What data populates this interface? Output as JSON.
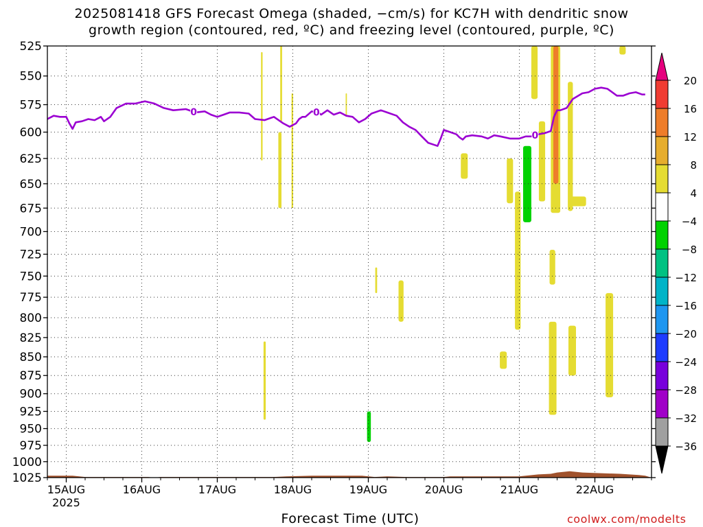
{
  "title": {
    "line1": "2025081418 GFS Forecast Omega (shaded, −cm/s) for KC7H with dendritic snow",
    "line2": "growth region (contoured, red, ºC) and freezing level (contoured, purple, ºC)"
  },
  "x_axis_title": "Forecast Time (UTC)",
  "credit": "coolwx.com/modelts",
  "chart_data": {
    "type": "heatmap",
    "y_axis": {
      "unit": "hPa",
      "ticks": [
        525,
        550,
        575,
        600,
        625,
        650,
        675,
        700,
        725,
        750,
        775,
        800,
        825,
        850,
        875,
        900,
        925,
        950,
        975,
        1000,
        1025
      ],
      "range": [
        525,
        1025
      ],
      "scale": "log-pressure"
    },
    "x_axis": {
      "unit": "hours from 2025-08-14 18Z",
      "range": [
        0,
        192
      ],
      "ticks": [
        {
          "hour": 6,
          "label": "15AUG",
          "sublabel": "2025"
        },
        {
          "hour": 30,
          "label": "16AUG"
        },
        {
          "hour": 54,
          "label": "17AUG"
        },
        {
          "hour": 78,
          "label": "18AUG"
        },
        {
          "hour": 102,
          "label": "19AUG"
        },
        {
          "hour": 126,
          "label": "20AUG"
        },
        {
          "hour": 150,
          "label": "21AUG"
        },
        {
          "hour": 174,
          "label": "22AUG"
        }
      ]
    },
    "grid": "dotted",
    "colorbar": {
      "labels": [
        "20",
        "16",
        "12",
        "8",
        "4",
        "−4",
        "−8",
        "−12",
        "−16",
        "−20",
        "−24",
        "−28",
        "−32",
        "−36"
      ],
      "bins": [
        {
          "from": 16,
          "to": 20,
          "color": "#f03c32"
        },
        {
          "from": 12,
          "to": 16,
          "color": "#ee7d2a"
        },
        {
          "from": 8,
          "to": 12,
          "color": "#e6ad2d"
        },
        {
          "from": 4,
          "to": 8,
          "color": "#e5dc32"
        },
        {
          "from": -4,
          "to": 4,
          "color": "#ffffff"
        },
        {
          "from": -8,
          "to": -4,
          "color": "#00d200"
        },
        {
          "from": -12,
          "to": -8,
          "color": "#00c282"
        },
        {
          "from": -16,
          "to": -12,
          "color": "#00b4c8"
        },
        {
          "from": -20,
          "to": -16,
          "color": "#1e96f0"
        },
        {
          "from": -24,
          "to": -20,
          "color": "#1e3cff"
        },
        {
          "from": -28,
          "to": -24,
          "color": "#7800dc"
        },
        {
          "from": -32,
          "to": -28,
          "color": "#a000c8"
        },
        {
          "from": -36,
          "to": -32,
          "color": "#a0a0a0"
        }
      ],
      "over_color": "#e6007e",
      "under_color": "#000000"
    },
    "omega_regions": [
      {
        "h0": 153.8,
        "h1": 155.8,
        "p0": 525,
        "p1": 570,
        "value": 6
      },
      {
        "h0": 148.6,
        "h1": 150.4,
        "p0": 658,
        "p1": 815,
        "value": 6
      },
      {
        "h0": 156.2,
        "h1": 158.2,
        "p0": 590,
        "p1": 668,
        "value": 6
      },
      {
        "h0": 165.4,
        "h1": 167.0,
        "p0": 555,
        "p1": 678,
        "value": 6
      },
      {
        "h0": 166.0,
        "h1": 171.2,
        "p0": 663,
        "p1": 673,
        "value": 6
      },
      {
        "h0": 160.0,
        "h1": 163.0,
        "p0": 525,
        "p1": 680,
        "value": 6
      },
      {
        "h0": 160.8,
        "h1": 162.4,
        "p0": 525,
        "p1": 650,
        "value": 12
      },
      {
        "h0": 161.0,
        "h1": 162.0,
        "p0": 545,
        "p1": 610,
        "value": 14
      },
      {
        "h0": 159.6,
        "h1": 161.4,
        "p0": 720,
        "p1": 760,
        "value": 6
      },
      {
        "h0": 159.4,
        "h1": 161.8,
        "p0": 805,
        "p1": 930,
        "value": 6
      },
      {
        "h0": 165.6,
        "h1": 168.0,
        "p0": 810,
        "p1": 875,
        "value": 6
      },
      {
        "h0": 177.4,
        "h1": 179.8,
        "p0": 770,
        "p1": 905,
        "value": 6
      },
      {
        "h0": 181.8,
        "h1": 183.8,
        "p0": 525,
        "p1": 532,
        "value": 6
      },
      {
        "h0": 146.0,
        "h1": 148.0,
        "p0": 625,
        "p1": 670,
        "value": 6
      },
      {
        "h0": 143.8,
        "h1": 146.0,
        "p0": 843,
        "p1": 866,
        "value": 6
      },
      {
        "h0": 131.4,
        "h1": 133.6,
        "p0": 620,
        "p1": 645,
        "value": 6
      },
      {
        "h0": 111.6,
        "h1": 113.2,
        "p0": 755,
        "p1": 805,
        "value": 6
      },
      {
        "h0": 104.2,
        "h1": 104.8,
        "p0": 740,
        "p1": 770,
        "value": 6
      },
      {
        "h0": 94.8,
        "h1": 95.2,
        "p0": 565,
        "p1": 585,
        "value": 6
      },
      {
        "h0": 67.9,
        "h1": 68.4,
        "p0": 530,
        "p1": 627,
        "value": 6
      },
      {
        "h0": 68.7,
        "h1": 69.4,
        "p0": 830,
        "p1": 937,
        "value": 6
      },
      {
        "h0": 73.4,
        "h1": 74.4,
        "p0": 600,
        "p1": 675,
        "value": 6
      },
      {
        "h0": 74.0,
        "h1": 74.6,
        "p0": 525,
        "p1": 590,
        "value": 6
      },
      {
        "h0": 77.6,
        "h1": 78.1,
        "p0": 565,
        "p1": 675,
        "value": 6
      },
      {
        "h0": 151.2,
        "h1": 153.8,
        "p0": 613,
        "p1": 690,
        "value": -6
      },
      {
        "h0": 101.6,
        "h1": 102.8,
        "p0": 925,
        "p1": 970,
        "value": -6
      }
    ],
    "freezing_level": {
      "contour_label": "0",
      "color": "#9b00d2",
      "points": [
        [
          0,
          588
        ],
        [
          2,
          585
        ],
        [
          4,
          586
        ],
        [
          6,
          586
        ],
        [
          7,
          592
        ],
        [
          8,
          597
        ],
        [
          9,
          591
        ],
        [
          11,
          590
        ],
        [
          13,
          588
        ],
        [
          15,
          589
        ],
        [
          17,
          586
        ],
        [
          18,
          590
        ],
        [
          20,
          586
        ],
        [
          22,
          578
        ],
        [
          25,
          574
        ],
        [
          28,
          574
        ],
        [
          31,
          572
        ],
        [
          34,
          574
        ],
        [
          37,
          578
        ],
        [
          40,
          580
        ],
        [
          44,
          579
        ],
        [
          47,
          582
        ],
        [
          50,
          581
        ],
        [
          52,
          584
        ],
        [
          54,
          586
        ],
        [
          56,
          584
        ],
        [
          58,
          582
        ],
        [
          61,
          582
        ],
        [
          64,
          583
        ],
        [
          66,
          588
        ],
        [
          69,
          589
        ],
        [
          71,
          587
        ],
        [
          72,
          586
        ],
        [
          75,
          592
        ],
        [
          77,
          595
        ],
        [
          79,
          592
        ],
        [
          80,
          588
        ],
        [
          81,
          586
        ],
        [
          82,
          586
        ],
        [
          84,
          581
        ],
        [
          86,
          582
        ],
        [
          87,
          584
        ],
        [
          89,
          580
        ],
        [
          91,
          584
        ],
        [
          93,
          582
        ],
        [
          95,
          585
        ],
        [
          97,
          586
        ],
        [
          99,
          591
        ],
        [
          101,
          588
        ],
        [
          103,
          583
        ],
        [
          106,
          580
        ],
        [
          108,
          582
        ],
        [
          111,
          585
        ],
        [
          113,
          591
        ],
        [
          115,
          595
        ],
        [
          117,
          598
        ],
        [
          119,
          604
        ],
        [
          121,
          610
        ],
        [
          123,
          612
        ],
        [
          124,
          613
        ],
        [
          125,
          606
        ],
        [
          126,
          598
        ],
        [
          128,
          600
        ],
        [
          130,
          602
        ],
        [
          131,
          605
        ],
        [
          132,
          607
        ],
        [
          133,
          604
        ],
        [
          135,
          603
        ],
        [
          138,
          604
        ],
        [
          140,
          606
        ],
        [
          142,
          603
        ],
        [
          144,
          604
        ],
        [
          147,
          606
        ],
        [
          150,
          606
        ],
        [
          152,
          604
        ],
        [
          154,
          604
        ],
        [
          156,
          602
        ],
        [
          158,
          601
        ],
        [
          160,
          599
        ],
        [
          161,
          586
        ],
        [
          162,
          580
        ],
        [
          163,
          580
        ],
        [
          165,
          578
        ],
        [
          167,
          570
        ],
        [
          170,
          565
        ],
        [
          172,
          564
        ],
        [
          174,
          561
        ],
        [
          176,
          560
        ],
        [
          178,
          561
        ],
        [
          179,
          563
        ],
        [
          181,
          567
        ],
        [
          183,
          567
        ],
        [
          185,
          565
        ],
        [
          187,
          564
        ],
        [
          189,
          566
        ],
        [
          190,
          566
        ]
      ],
      "label_hours": [
        46.5,
        85.5,
        155.0
      ]
    },
    "terrain": {
      "color": "#a0522d",
      "points": [
        [
          0,
          1022
        ],
        [
          8,
          1022
        ],
        [
          12,
          1024
        ],
        [
          32,
          1024
        ],
        [
          34,
          1025
        ],
        [
          36,
          1024
        ],
        [
          56,
          1024
        ],
        [
          72,
          1024
        ],
        [
          76,
          1023
        ],
        [
          84,
          1022
        ],
        [
          100,
          1022
        ],
        [
          104,
          1024
        ],
        [
          108,
          1023
        ],
        [
          114,
          1024
        ],
        [
          126,
          1024
        ],
        [
          128,
          1023
        ],
        [
          136,
          1023
        ],
        [
          150,
          1023
        ],
        [
          152,
          1022
        ],
        [
          156,
          1020
        ],
        [
          160,
          1019
        ],
        [
          162,
          1017
        ],
        [
          166,
          1015
        ],
        [
          170,
          1017
        ],
        [
          176,
          1018
        ],
        [
          182,
          1019
        ],
        [
          188,
          1021
        ],
        [
          190,
          1022
        ]
      ]
    }
  }
}
